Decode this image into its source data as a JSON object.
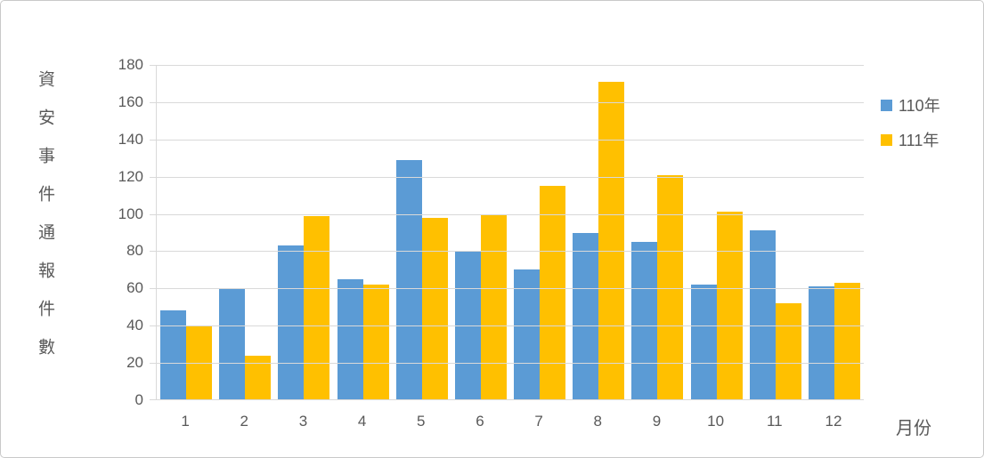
{
  "chart_data": {
    "type": "bar",
    "title": "",
    "categories": [
      "1",
      "2",
      "3",
      "4",
      "5",
      "6",
      "7",
      "8",
      "9",
      "10",
      "11",
      "12"
    ],
    "series": [
      {
        "name": "110年",
        "color": "#5B9BD5",
        "values": [
          48,
          60,
          83,
          65,
          129,
          80,
          70,
          90,
          85,
          62,
          91,
          61
        ]
      },
      {
        "name": "111年",
        "color": "#FFC000",
        "values": [
          40,
          24,
          99,
          62,
          98,
          100,
          115,
          171,
          121,
          101,
          52,
          63
        ]
      }
    ],
    "xlabel": "月份",
    "ylabel": "資安事件通報件數",
    "ylim": [
      0,
      180
    ],
    "ytick_step": 20,
    "yticks": [
      "0",
      "20",
      "40",
      "60",
      "80",
      "100",
      "120",
      "140",
      "160",
      "180"
    ],
    "grid": "horizontal",
    "legend_position": "right",
    "colors": {
      "axis_line": "#d9d9d9",
      "grid_line": "#d9d9d9",
      "text": "#595959",
      "background": "#ffffff"
    }
  }
}
